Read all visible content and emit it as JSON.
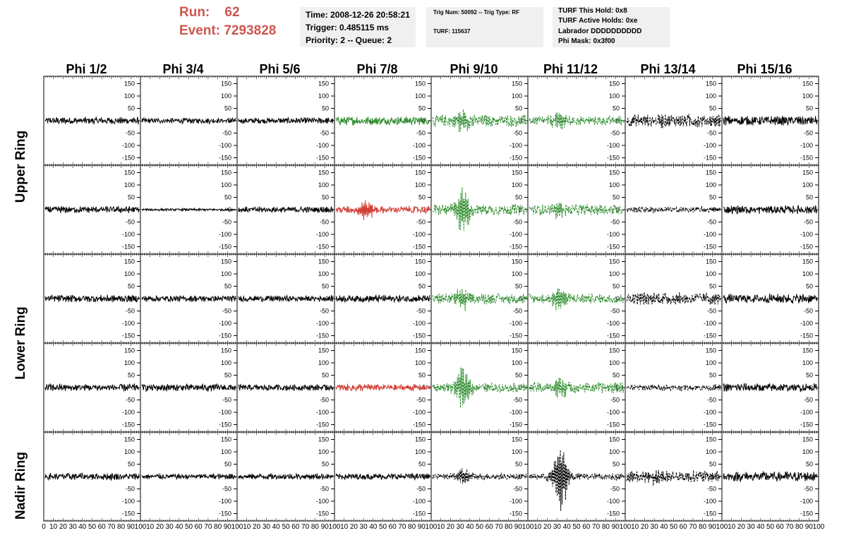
{
  "header": {
    "run_label": "Run:",
    "run_value": "62",
    "event_label": "Event:",
    "event_value": "7293828"
  },
  "time_box": {
    "time": "Time: 2008-12-26 20:58:21",
    "trigger": "Trigger: 0.485115 ms",
    "priority": "Priority: 2 -- Queue: 2"
  },
  "trig_box": {
    "trig": "Trig Num: 50092 -- Trig Type: RF",
    "turf": "TURF: 115637"
  },
  "turf_box": {
    "this_hold": "TURF This Hold: 0x8",
    "active_holds": "TURF Active Holds: 0xe",
    "labrador": "Labrador DDDDDDDDDD",
    "phi_mask": "Phi Mask: 0x3f00"
  },
  "columns": [
    "Phi 1/2",
    "Phi 3/4",
    "Phi 5/6",
    "Phi 7/8",
    "Phi 9/10",
    "Phi 11/12",
    "Phi 13/14",
    "Phi 15/16"
  ],
  "rings": {
    "upper": "Upper Ring",
    "lower": "Lower Ring",
    "nadir": "Nadir Ring"
  },
  "axes": {
    "y_ticks": [
      "150",
      "100",
      "50",
      "0",
      "-50",
      "-100",
      "-150"
    ],
    "x_ticks": [
      "0",
      "10",
      "20",
      "30",
      "40",
      "50",
      "60",
      "70",
      "80",
      "90",
      "100"
    ],
    "x_range": [
      0,
      100
    ],
    "y_range": [
      -180,
      180
    ]
  },
  "colors": {
    "header_red": "#cd5650",
    "info_bg": "#f0f0f0",
    "trace_normal": "#000000",
    "trace_green": "#2a8a2a",
    "trace_red": "#d23c32"
  },
  "chart_data": {
    "type": "line",
    "rows": [
      {
        "ring": "Upper Ring",
        "colors": [
          "k",
          "k",
          "k",
          "g",
          "gd",
          "gd",
          "kd",
          "k"
        ],
        "amp": [
          12,
          9,
          10,
          14,
          20,
          16,
          22,
          16
        ],
        "burst": [
          0,
          0,
          0,
          0,
          55,
          40,
          12,
          0
        ]
      },
      {
        "ring": "Upper Ring",
        "colors": [
          "k",
          "k",
          "k",
          "r",
          "gd",
          "gd",
          "kd",
          "k"
        ],
        "amp": [
          11,
          4,
          10,
          12,
          18,
          18,
          10,
          14
        ],
        "burst": [
          0,
          0,
          0,
          38,
          85,
          30,
          0,
          0
        ]
      },
      {
        "ring": "Lower Ring",
        "colors": [
          "k",
          "k",
          "k",
          "k",
          "gd",
          "gd",
          "kd",
          "k"
        ],
        "amp": [
          12,
          10,
          10,
          12,
          18,
          16,
          20,
          16
        ],
        "burst": [
          0,
          0,
          0,
          0,
          45,
          55,
          10,
          0
        ]
      },
      {
        "ring": "Lower Ring",
        "colors": [
          "k",
          "k",
          "k",
          "r",
          "gd",
          "gd",
          "kd",
          "k"
        ],
        "amp": [
          13,
          12,
          10,
          12,
          15,
          18,
          10,
          14
        ],
        "burst": [
          0,
          0,
          0,
          0,
          100,
          45,
          0,
          0
        ]
      },
      {
        "ring": "Nadir Ring",
        "colors": [
          "k",
          "k",
          "k",
          "k",
          "kd",
          "kd",
          "kd",
          "k"
        ],
        "amp": [
          12,
          9,
          10,
          10,
          10,
          12,
          20,
          16
        ],
        "burst": [
          0,
          0,
          0,
          0,
          35,
          140,
          18,
          0
        ]
      }
    ]
  }
}
